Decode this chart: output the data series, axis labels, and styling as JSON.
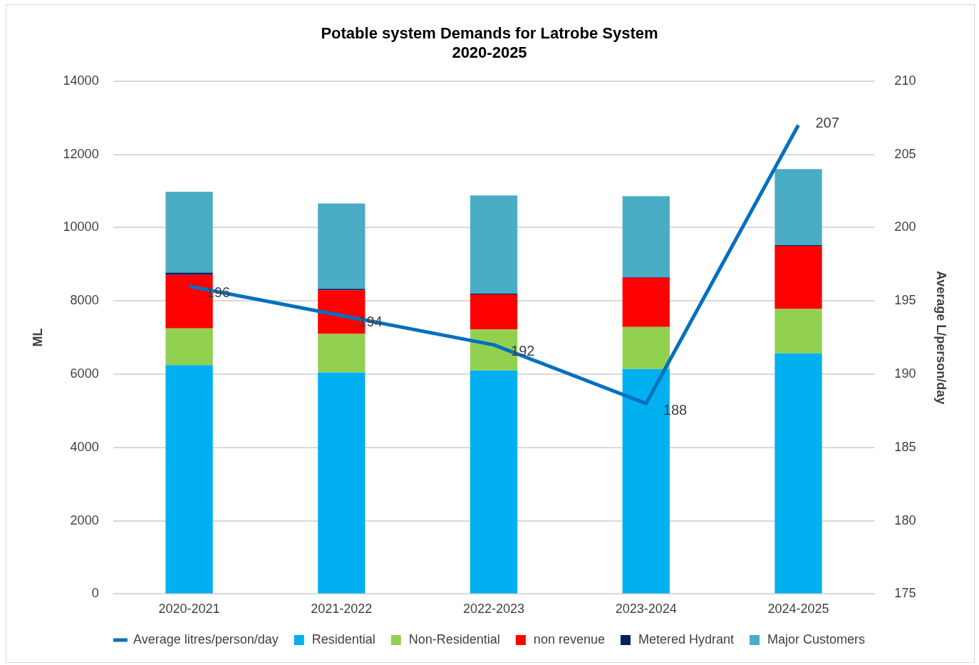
{
  "chart_data": {
    "type": "bar",
    "title": "Potable system Demands for Latrobe System\n2020-2025",
    "ylabel": "ML",
    "y2label": "Average L/person/day",
    "categories": [
      "2020-2021",
      "2021-2022",
      "2022-2023",
      "2023-2024",
      "2024-2025"
    ],
    "stacked": true,
    "series": [
      {
        "name": "Residential",
        "color": "#00b0f0",
        "values": [
          6250,
          6050,
          6100,
          6140,
          6570
        ]
      },
      {
        "name": "Non-Residential",
        "color": "#92d050",
        "values": [
          1000,
          1050,
          1120,
          1150,
          1210
        ]
      },
      {
        "name": "non revenue",
        "color": "#ff0000",
        "values": [
          1460,
          1190,
          960,
          1340,
          1720
        ]
      },
      {
        "name": "Metered Hydrant",
        "color": "#002060",
        "values": [
          60,
          40,
          20,
          20,
          20
        ]
      },
      {
        "name": "Major Customers",
        "color": "#4bacc6",
        "values": [
          2210,
          2330,
          2680,
          2210,
          2080
        ]
      },
      {
        "name": "Average litres/person/day",
        "type": "line",
        "axis": "y2",
        "color": "#0070c0",
        "values": [
          196,
          194,
          192,
          188,
          207
        ],
        "value_labels": [
          "196",
          "194",
          "192",
          "188",
          "207"
        ]
      }
    ],
    "ylim": [
      0,
      14000
    ],
    "yticks": [
      0,
      2000,
      4000,
      6000,
      8000,
      10000,
      12000,
      14000
    ],
    "y2lim": [
      175,
      210
    ],
    "y2ticks": [
      175,
      180,
      185,
      190,
      195,
      200,
      205,
      210
    ],
    "grid": "y",
    "legend": "bottom",
    "marker": "none"
  }
}
